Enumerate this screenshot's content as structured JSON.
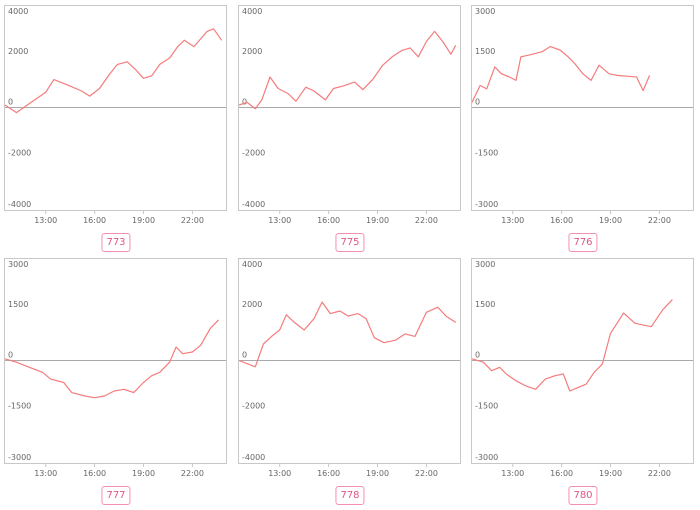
{
  "colors": {
    "line": "#f47c7c",
    "frame": "#c8c8c8",
    "zero": "#aaaaaa",
    "badge": "#e05585"
  },
  "chart_data": [
    {
      "type": "line",
      "label": "773",
      "ylim": [
        -4000,
        4000
      ],
      "yticks": [
        4000,
        2000,
        0,
        -2000,
        -4000
      ],
      "xticks": [
        "13:00",
        "16:00",
        "19:00",
        "22:00"
      ],
      "x": [
        10.5,
        11.2,
        12.1,
        13.0,
        13.5,
        14.3,
        15.2,
        15.7,
        16.3,
        16.9,
        17.4,
        18.0,
        18.5,
        19.0,
        19.5,
        20.0,
        20.6,
        21.1,
        21.5,
        22.1,
        22.9,
        23.3,
        23.8
      ],
      "values": [
        100,
        -200,
        200,
        600,
        1100,
        900,
        650,
        450,
        750,
        1300,
        1700,
        1800,
        1500,
        1150,
        1250,
        1700,
        1950,
        2400,
        2650,
        2400,
        3000,
        3100,
        2650
      ]
    },
    {
      "type": "line",
      "label": "775",
      "ylim": [
        -4000,
        4000
      ],
      "yticks": [
        4000,
        2000,
        0,
        -2000,
        -4000
      ],
      "xticks": [
        "13:00",
        "16:00",
        "19:00",
        "22:00"
      ],
      "x": [
        10.5,
        11.0,
        11.5,
        11.9,
        12.4,
        12.9,
        13.5,
        14.0,
        14.6,
        15.1,
        15.8,
        16.3,
        16.9,
        17.6,
        18.1,
        18.7,
        19.3,
        19.9,
        20.5,
        21.0,
        21.5,
        22.0,
        22.5,
        23.0,
        23.5,
        23.8
      ],
      "values": [
        100,
        200,
        -50,
        300,
        1200,
        750,
        550,
        250,
        800,
        650,
        300,
        750,
        850,
        1000,
        700,
        1100,
        1650,
        2000,
        2250,
        2350,
        2000,
        2600,
        3000,
        2600,
        2100,
        2450
      ]
    },
    {
      "type": "line",
      "label": "776",
      "ylim": [
        -3000,
        3000
      ],
      "yticks": [
        3000,
        1500,
        0,
        -1500,
        -3000
      ],
      "xticks": [
        "13:00",
        "16:00",
        "19:00",
        "22:00"
      ],
      "x": [
        10.5,
        11.0,
        11.4,
        11.9,
        12.3,
        12.8,
        13.2,
        13.5,
        14.0,
        14.8,
        15.3,
        15.9,
        16.4,
        16.8,
        17.3,
        17.8,
        18.3,
        18.9,
        19.4,
        20.6,
        21.0,
        21.4
      ],
      "values": [
        150,
        650,
        550,
        1200,
        1000,
        900,
        800,
        1500,
        1550,
        1650,
        1800,
        1700,
        1500,
        1300,
        1000,
        800,
        1250,
        1000,
        950,
        900,
        500,
        950
      ]
    },
    {
      "type": "line",
      "label": "777",
      "ylim": [
        -3000,
        3000
      ],
      "yticks": [
        3000,
        1500,
        0,
        -1500,
        -3000
      ],
      "xticks": [
        "13:00",
        "16:00",
        "19:00",
        "22:00"
      ],
      "x": [
        10.5,
        11.2,
        12.0,
        12.8,
        13.3,
        14.1,
        14.6,
        15.4,
        16.0,
        16.6,
        17.2,
        17.8,
        18.4,
        19.0,
        19.5,
        20.0,
        20.6,
        21.0,
        21.4,
        22.0,
        22.5,
        23.1,
        23.6
      ],
      "values": [
        50,
        -50,
        -200,
        -350,
        -550,
        -650,
        -950,
        -1050,
        -1100,
        -1050,
        -900,
        -850,
        -950,
        -650,
        -450,
        -350,
        -50,
        400,
        200,
        250,
        450,
        950,
        1200
      ]
    },
    {
      "type": "line",
      "label": "778",
      "ylim": [
        -4000,
        4000
      ],
      "yticks": [
        4000,
        2000,
        0,
        -2000,
        -4000
      ],
      "xticks": [
        "13:00",
        "16:00",
        "19:00",
        "22:00"
      ],
      "x": [
        10.5,
        11.5,
        12.0,
        12.5,
        13.0,
        13.4,
        13.9,
        14.5,
        15.1,
        15.6,
        16.1,
        16.7,
        17.2,
        17.8,
        18.3,
        18.8,
        19.4,
        20.1,
        20.7,
        21.3,
        22.0,
        22.7,
        23.2,
        23.8
      ],
      "values": [
        0,
        -250,
        650,
        950,
        1200,
        1800,
        1500,
        1200,
        1650,
        2300,
        1850,
        1950,
        1750,
        1850,
        1650,
        900,
        700,
        800,
        1050,
        950,
        1900,
        2100,
        1750,
        1500
      ]
    },
    {
      "type": "line",
      "label": "780",
      "ylim": [
        -3000,
        3000
      ],
      "yticks": [
        3000,
        1500,
        0,
        -1500,
        -3000
      ],
      "xticks": [
        "13:00",
        "16:00",
        "19:00",
        "22:00"
      ],
      "x": [
        10.5,
        11.2,
        11.7,
        12.2,
        12.6,
        13.2,
        13.8,
        14.4,
        15.0,
        15.6,
        16.1,
        16.5,
        17.0,
        17.5,
        18.0,
        18.5,
        19.0,
        19.8,
        20.5,
        21.5,
        22.2,
        22.8
      ],
      "values": [
        50,
        -50,
        -300,
        -200,
        -400,
        -600,
        -750,
        -850,
        -550,
        -450,
        -400,
        -900,
        -800,
        -700,
        -350,
        -100,
        800,
        1400,
        1100,
        1000,
        1500,
        1800
      ]
    }
  ]
}
